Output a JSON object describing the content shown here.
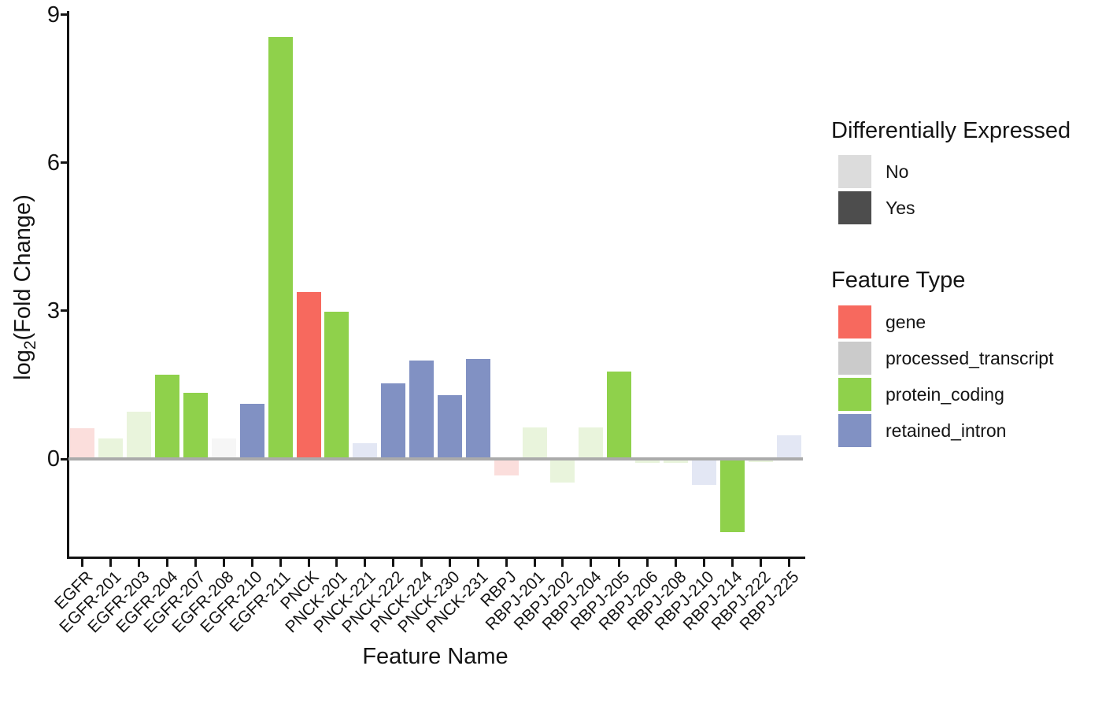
{
  "chart_data": {
    "type": "bar",
    "title": "",
    "xlabel": "Feature Name",
    "ylabel": {
      "prefix": "log",
      "sub": "2",
      "suffix": "(Fold Change)"
    },
    "ylabel_text": "log2(Fold Change)",
    "ylim": [
      -2,
      9.05
    ],
    "yticks": [
      0,
      3,
      6,
      9
    ],
    "grid": "off",
    "legend_position": "right",
    "categories": [
      "EGFR",
      "EGFR-201",
      "EGFR-203",
      "EGFR-204",
      "EGFR-207",
      "EGFR-208",
      "EGFR-210",
      "EGFR-211",
      "PNCK",
      "PNCK-201",
      "PNCK-221",
      "PNCK-222",
      "PNCK-224",
      "PNCK-230",
      "PNCK-231",
      "RBPJ",
      "RBPJ-201",
      "RBPJ-202",
      "RBPJ-204",
      "RBPJ-205",
      "RBPJ-206",
      "RBPJ-208",
      "RBPJ-210",
      "RBPJ-214",
      "RBPJ-222",
      "RBPJ-225"
    ],
    "values": [
      0.62,
      0.41,
      0.96,
      1.71,
      1.34,
      0.42,
      1.11,
      8.56,
      3.38,
      2.98,
      0.32,
      1.53,
      2.0,
      1.29,
      2.02,
      -0.33,
      0.64,
      -0.48,
      0.64,
      1.77,
      -0.08,
      -0.08,
      -0.53,
      -1.48,
      -0.06,
      0.48
    ],
    "feature_types": [
      "gene",
      "protein_coding",
      "protein_coding",
      "protein_coding",
      "protein_coding",
      "processed_transcript",
      "retained_intron",
      "protein_coding",
      "gene",
      "protein_coding",
      "retained_intron",
      "retained_intron",
      "retained_intron",
      "retained_intron",
      "retained_intron",
      "gene",
      "protein_coding",
      "protein_coding",
      "protein_coding",
      "protein_coding",
      "protein_coding",
      "protein_coding",
      "retained_intron",
      "protein_coding",
      "protein_coding",
      "retained_intron"
    ],
    "differentially_expressed": [
      "No",
      "No",
      "No",
      "Yes",
      "Yes",
      "No",
      "Yes",
      "Yes",
      "Yes",
      "Yes",
      "No",
      "Yes",
      "Yes",
      "Yes",
      "Yes",
      "No",
      "No",
      "No",
      "No",
      "Yes",
      "No",
      "No",
      "No",
      "Yes",
      "No",
      "No"
    ]
  },
  "colors": {
    "solid": {
      "gene": "#F7695E",
      "processed_transcript": "#CBCBCB",
      "protein_coding": "#8FD14B",
      "retained_intron": "#8191C3"
    },
    "muted": {
      "gene": "#FBDEDC",
      "processed_transcript": "#F6F6F6",
      "protein_coding": "#E9F4DC",
      "retained_intron": "#E3E7F4"
    },
    "zero_line": "#ABABAB",
    "axis": "#141414"
  },
  "legends": {
    "differential": {
      "title": "Differentially Expressed",
      "items": [
        {
          "label": "No",
          "color": "#DCDCDC"
        },
        {
          "label": "Yes",
          "color": "#4D4D4D"
        }
      ]
    },
    "feature_type": {
      "title": "Feature Type",
      "items": [
        {
          "label": "gene",
          "color": "#F7695E"
        },
        {
          "label": "processed_transcript",
          "color": "#CBCBCB"
        },
        {
          "label": "protein_coding",
          "color": "#8FD14B"
        },
        {
          "label": "retained_intron",
          "color": "#8191C3"
        }
      ]
    }
  }
}
